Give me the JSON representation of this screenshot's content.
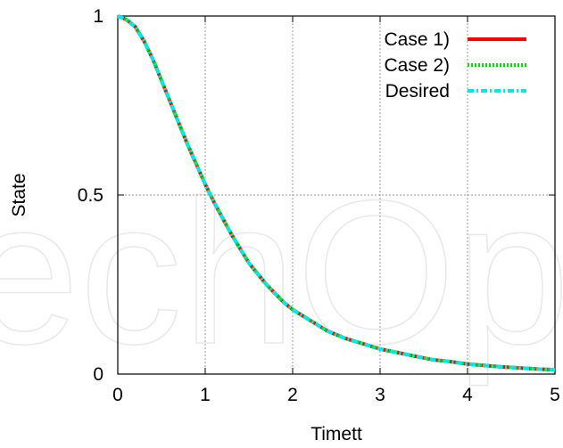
{
  "watermark_text": "echOp",
  "chart_data": {
    "type": "line",
    "xlabel": "Timett",
    "ylabel": "State",
    "xlim": [
      0,
      5
    ],
    "ylim": [
      0,
      1
    ],
    "x_ticks": [
      "0",
      "1",
      "2",
      "3",
      "4",
      "5"
    ],
    "y_ticks": [
      "0",
      "0.5",
      "1"
    ],
    "grid": true,
    "legend_position": "top-right",
    "x": [
      0,
      0.1,
      0.2,
      0.3,
      0.4,
      0.5,
      0.6,
      0.7,
      0.8,
      0.9,
      1.0,
      1.1,
      1.2,
      1.3,
      1.4,
      1.5,
      1.6,
      1.7,
      1.8,
      1.9,
      2.0,
      2.2,
      2.4,
      2.6,
      2.8,
      3.0,
      3.2,
      3.4,
      3.6,
      3.8,
      4.0,
      4.2,
      4.4,
      4.6,
      4.8,
      5.0
    ],
    "series": [
      {
        "name": "Case 1)",
        "color": "#ff0000",
        "style": "solid",
        "values": [
          1.0,
          0.99,
          0.97,
          0.93,
          0.88,
          0.82,
          0.76,
          0.7,
          0.64,
          0.585,
          0.53,
          0.48,
          0.435,
          0.39,
          0.35,
          0.31,
          0.28,
          0.25,
          0.225,
          0.2,
          0.18,
          0.15,
          0.12,
          0.1,
          0.085,
          0.07,
          0.06,
          0.05,
          0.04,
          0.035,
          0.028,
          0.024,
          0.02,
          0.017,
          0.014,
          0.012
        ]
      },
      {
        "name": "Case 2)",
        "color": "#00dd00",
        "style": "dotted",
        "values": [
          1.0,
          0.99,
          0.97,
          0.93,
          0.88,
          0.82,
          0.76,
          0.7,
          0.64,
          0.585,
          0.53,
          0.48,
          0.435,
          0.39,
          0.35,
          0.31,
          0.28,
          0.25,
          0.225,
          0.2,
          0.18,
          0.15,
          0.12,
          0.1,
          0.085,
          0.07,
          0.06,
          0.05,
          0.04,
          0.035,
          0.028,
          0.024,
          0.02,
          0.017,
          0.014,
          0.012
        ]
      },
      {
        "name": "Desired",
        "color": "#00e5ee",
        "style": "dash-dot",
        "values": [
          1.0,
          0.99,
          0.97,
          0.93,
          0.88,
          0.82,
          0.76,
          0.7,
          0.64,
          0.585,
          0.53,
          0.48,
          0.435,
          0.39,
          0.35,
          0.31,
          0.28,
          0.25,
          0.225,
          0.2,
          0.18,
          0.15,
          0.12,
          0.1,
          0.085,
          0.07,
          0.06,
          0.05,
          0.04,
          0.035,
          0.028,
          0.024,
          0.02,
          0.017,
          0.014,
          0.012
        ]
      }
    ]
  }
}
